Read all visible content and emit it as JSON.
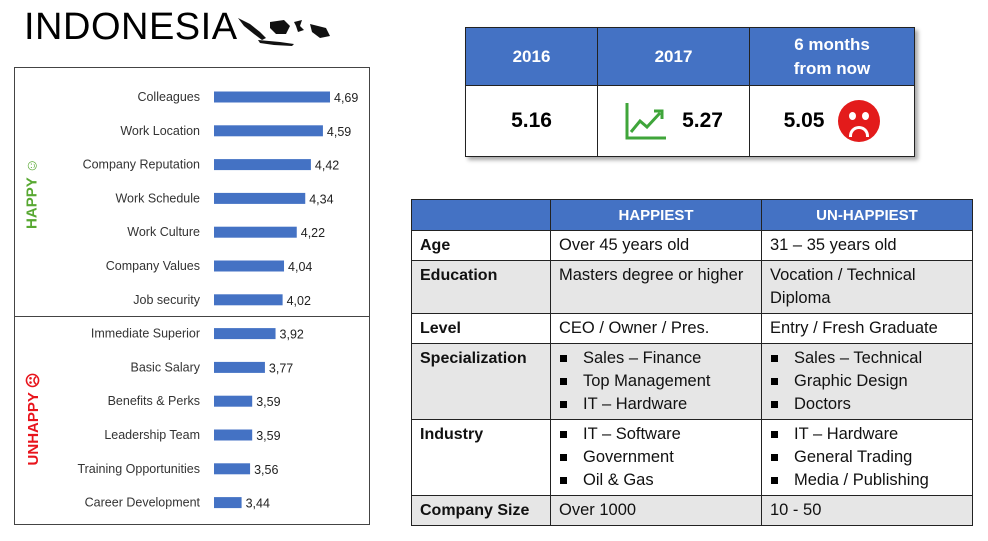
{
  "title": "INDONESIA",
  "colors": {
    "header_blue": "#4472c4",
    "bar_blue": "#4472c4",
    "happy_green": "#58a832",
    "unhappy_red": "#e8141c"
  },
  "icons": {
    "map": "indonesia-map-icon",
    "trend": "trend-up-chart-icon",
    "sad": "sad-face-icon"
  },
  "chart_data": {
    "type": "bar",
    "orientation": "horizontal",
    "groups": [
      {
        "name": "HAPPY ☺",
        "categories": [
          "Colleagues",
          "Work Location",
          "Company Reputation",
          "Work Schedule",
          "Work Culture",
          "Company Values",
          "Job security"
        ],
        "labels": [
          "4,69",
          "4,59",
          "4,42",
          "4,34",
          "4,22",
          "4,04",
          "4,02"
        ]
      },
      {
        "name": "UNHAPPY ☹",
        "categories": [
          "Immediate Superior",
          "Basic Salary",
          "Benefits & Perks",
          "Leadership Team",
          "Training Opportunities",
          "Career Development"
        ],
        "labels": [
          "3,92",
          "3,77",
          "3,59",
          "3,59",
          "3,56",
          "3,44"
        ]
      }
    ],
    "values": [
      4.69,
      4.59,
      4.42,
      4.34,
      4.22,
      4.04,
      4.02,
      3.92,
      3.77,
      3.59,
      3.59,
      3.56,
      3.44
    ],
    "xlim": [
      3.05,
      4.69
    ]
  },
  "scores": {
    "headers": [
      "2016",
      "2017",
      "6 months from now"
    ],
    "values": [
      "5.16",
      "5.27",
      "5.05"
    ]
  },
  "profile": {
    "headers": [
      "",
      "HAPPIEST",
      "UN-HAPPIEST"
    ],
    "rows": [
      {
        "label": "Age",
        "happiest": "Over 45 years old",
        "unhappiest": "31 – 35 years old"
      },
      {
        "label": "Education",
        "happiest": "Masters degree or higher",
        "unhappiest": "Vocation / Technical Diploma"
      },
      {
        "label": "Level",
        "happiest": "CEO / Owner / Pres.",
        "unhappiest": "Entry / Fresh Graduate"
      },
      {
        "label": "Specialization",
        "happiest_list": [
          "Sales – Finance",
          "Top Management",
          "IT – Hardware"
        ],
        "unhappiest_list": [
          "Sales – Technical",
          "Graphic Design",
          "Doctors"
        ]
      },
      {
        "label": "Industry",
        "happiest_list": [
          "IT – Software",
          "Government",
          "Oil & Gas"
        ],
        "unhappiest_list": [
          "IT – Hardware",
          "General Trading",
          "Media / Publishing"
        ]
      },
      {
        "label": "Company Size",
        "happiest": "Over 1000",
        "unhappiest": "10 - 50"
      }
    ]
  }
}
